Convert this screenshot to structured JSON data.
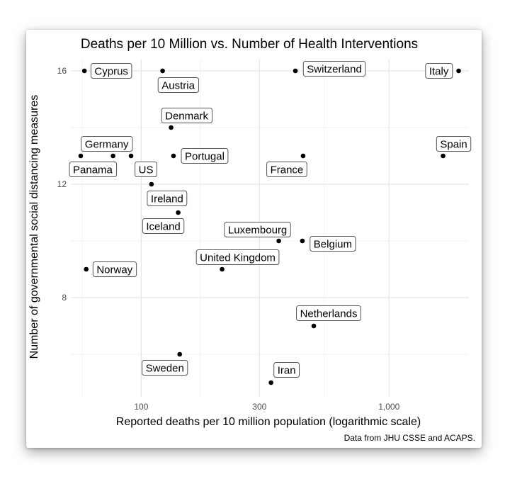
{
  "chart_data": {
    "type": "scatter",
    "title": "Deaths per 10 Million vs. Number of Health Interventions",
    "xlabel": "Reported deaths per 10 million population (logarithmic scale)",
    "ylabel": "Number of governmental social distancing measures",
    "caption": "Data from JHU CSSE and ACAPS.",
    "x_scale": "log10",
    "xlim": [
      52,
      2100
    ],
    "ylim": [
      4.5,
      16.4
    ],
    "x_ticks": [
      100,
      300,
      1000
    ],
    "x_tick_labels": [
      "100",
      "300",
      "1,000"
    ],
    "y_ticks": [
      8,
      12,
      16
    ],
    "y_tick_labels": [
      "8",
      "12",
      "16"
    ],
    "grid": true,
    "point_color": "#000000",
    "points": [
      {
        "label": "Cyprus",
        "x": 59,
        "y": 16
      },
      {
        "label": "Austria",
        "x": 122,
        "y": 16
      },
      {
        "label": "Switzerland",
        "x": 419,
        "y": 16
      },
      {
        "label": "Italy",
        "x": 1910,
        "y": 16
      },
      {
        "label": "Denmark",
        "x": 132,
        "y": 14
      },
      {
        "label": "Germany",
        "x": 77,
        "y": 13
      },
      {
        "label": "Panama",
        "x": 57,
        "y": 13
      },
      {
        "label": "US",
        "x": 91,
        "y": 13
      },
      {
        "label": "Portugal",
        "x": 135,
        "y": 13
      },
      {
        "label": "France",
        "x": 450,
        "y": 13
      },
      {
        "label": "Spain",
        "x": 1652,
        "y": 13
      },
      {
        "label": "Ireland",
        "x": 110,
        "y": 12
      },
      {
        "label": "Iceland",
        "x": 141,
        "y": 11
      },
      {
        "label": "Luxembourg",
        "x": 359,
        "y": 10
      },
      {
        "label": "Belgium",
        "x": 447,
        "y": 10
      },
      {
        "label": "United Kingdom",
        "x": 212,
        "y": 9
      },
      {
        "label": "Norway",
        "x": 60,
        "y": 9
      },
      {
        "label": "Netherlands",
        "x": 497,
        "y": 7
      },
      {
        "label": "Sweden",
        "x": 143,
        "y": 6
      },
      {
        "label": "Iran",
        "x": 334,
        "y": 5
      }
    ]
  }
}
